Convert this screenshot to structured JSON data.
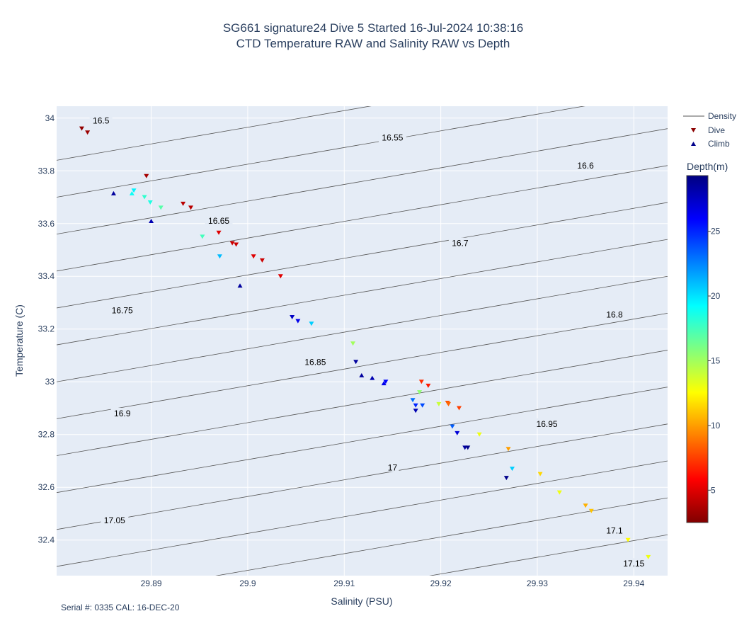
{
  "header": {
    "title_line1": "SG661 signature24 Dive 5 Started 16-Jul-2024 10:38:16",
    "title_line2": "CTD Temperature RAW and Salinity RAW vs Depth"
  },
  "footnote": "Serial #: 0335  CAL: 16-DEC-20",
  "chart_data": {
    "type": "scatter",
    "title": "SG661 signature24 Dive 5 Started 16-Jul-2024 10:38:16 CTD Temperature RAW and Salinity RAW vs Depth",
    "xlabel": "Salinity (PSU)",
    "ylabel": "Temperature (C)",
    "xlim": [
      29.8802,
      29.9435
    ],
    "ylim": [
      32.265,
      34.045
    ],
    "xticks": [
      "29.89",
      "29.9",
      "29.91",
      "29.92",
      "29.93",
      "29.94"
    ],
    "xtick_values": [
      29.89,
      29.9,
      29.91,
      29.92,
      29.93,
      29.94
    ],
    "yticks": [
      "32.4",
      "32.6",
      "32.8",
      "33",
      "33.2",
      "33.4",
      "33.6",
      "33.8",
      "34"
    ],
    "ytick_values": [
      32.4,
      32.6,
      32.8,
      33.0,
      33.2,
      33.4,
      33.6,
      33.8,
      34.0
    ],
    "grid": true,
    "legend": {
      "placement": "right",
      "entries": [
        {
          "name": "Density",
          "symbol": "line",
          "color": "#555555"
        },
        {
          "name": "Dive",
          "symbol": "triangle-down",
          "color": "#8b0000"
        },
        {
          "name": "Climb",
          "symbol": "triangle-up",
          "color": "#00008b"
        }
      ]
    },
    "colorbar": {
      "title": "Depth(m)",
      "min": 2.5,
      "max": 29.3,
      "ticks": [
        5,
        10,
        15,
        20,
        25
      ],
      "tick_labels": [
        "5",
        "10",
        "15",
        "20",
        "25"
      ],
      "colorscale": "jet-reversed"
    },
    "density_contours": [
      {
        "label": "16.5",
        "y_at_xmin": 33.84,
        "y_at_xmax": 34.24,
        "label_at": [
          29.8848,
          33.99
        ]
      },
      {
        "label": "16.55",
        "y_at_xmin": 33.7,
        "y_at_xmax": 34.1,
        "label_at": [
          29.915,
          33.925
        ]
      },
      {
        "label": "16.6",
        "y_at_xmin": 33.56,
        "y_at_xmax": 33.96,
        "label_at": [
          29.935,
          33.82
        ]
      },
      {
        "label": "16.65",
        "y_at_xmin": 33.42,
        "y_at_xmax": 33.82,
        "label_at": [
          29.897,
          33.61
        ]
      },
      {
        "label": "16.7",
        "y_at_xmin": 33.28,
        "y_at_xmax": 33.68,
        "label_at": [
          29.922,
          33.525
        ]
      },
      {
        "label": "16.75",
        "y_at_xmin": 33.14,
        "y_at_xmax": 33.54,
        "label_at": [
          29.887,
          33.27
        ]
      },
      {
        "label": "16.8",
        "y_at_xmin": 33.0,
        "y_at_xmax": 33.4,
        "label_at": [
          29.938,
          33.255
        ]
      },
      {
        "label": "16.85",
        "y_at_xmin": 32.86,
        "y_at_xmax": 33.26,
        "label_at": [
          29.907,
          33.075
        ]
      },
      {
        "label": "16.9",
        "y_at_xmin": 32.72,
        "y_at_xmax": 33.12,
        "label_at": [
          29.887,
          32.88
        ]
      },
      {
        "label": "16.95",
        "y_at_xmin": 32.58,
        "y_at_xmax": 32.98,
        "label_at": [
          29.931,
          32.84
        ]
      },
      {
        "label": "17",
        "y_at_xmin": 32.44,
        "y_at_xmax": 32.84,
        "label_at": [
          29.915,
          32.675
        ]
      },
      {
        "label": "17.05",
        "y_at_xmin": 32.3,
        "y_at_xmax": 32.7,
        "label_at": [
          29.8862,
          32.475
        ]
      },
      {
        "label": "17.1",
        "y_at_xmin": 32.16,
        "y_at_xmax": 32.56,
        "label_at": [
          29.938,
          32.435
        ]
      },
      {
        "label": "17.15",
        "y_at_xmin": 32.02,
        "y_at_xmax": 32.42,
        "label_at": [
          29.94,
          32.31
        ]
      }
    ],
    "series": [
      {
        "name": "Dive",
        "marker": "triangle-down",
        "points": [
          {
            "x": 29.8828,
            "y": 33.96,
            "depth": 3.0
          },
          {
            "x": 29.8834,
            "y": 33.945,
            "depth": 3.2
          },
          {
            "x": 29.8895,
            "y": 33.78,
            "depth": 3.5
          },
          {
            "x": 29.8933,
            "y": 33.675,
            "depth": 4.0
          },
          {
            "x": 29.8941,
            "y": 33.66,
            "depth": 4.0
          },
          {
            "x": 29.897,
            "y": 33.565,
            "depth": 5.0
          },
          {
            "x": 29.8984,
            "y": 33.525,
            "depth": 4.5
          },
          {
            "x": 29.8988,
            "y": 33.52,
            "depth": 4.5
          },
          {
            "x": 29.9006,
            "y": 33.475,
            "depth": 5.0
          },
          {
            "x": 29.9015,
            "y": 33.46,
            "depth": 4.5
          },
          {
            "x": 29.9034,
            "y": 33.4,
            "depth": 5.0
          },
          {
            "x": 29.918,
            "y": 33.0,
            "depth": 7.0
          },
          {
            "x": 29.9187,
            "y": 32.985,
            "depth": 6.5
          },
          {
            "x": 29.9207,
            "y": 32.92,
            "depth": 8.0
          },
          {
            "x": 29.9208,
            "y": 32.915,
            "depth": 8.5
          },
          {
            "x": 29.9219,
            "y": 32.9,
            "depth": 7.5
          },
          {
            "x": 29.924,
            "y": 32.8,
            "depth": 13.0
          },
          {
            "x": 29.927,
            "y": 32.745,
            "depth": 10.0
          },
          {
            "x": 29.9303,
            "y": 32.65,
            "depth": 11.5
          },
          {
            "x": 29.9323,
            "y": 32.58,
            "depth": 13.0
          },
          {
            "x": 29.935,
            "y": 32.53,
            "depth": 10.5
          },
          {
            "x": 29.9356,
            "y": 32.51,
            "depth": 11.0
          },
          {
            "x": 29.9394,
            "y": 32.4,
            "depth": 12.5
          },
          {
            "x": 29.9415,
            "y": 32.335,
            "depth": 13.0
          },
          {
            "x": 29.9109,
            "y": 33.145,
            "depth": 15.0
          },
          {
            "x": 29.9178,
            "y": 32.96,
            "depth": 15.5
          },
          {
            "x": 29.9198,
            "y": 32.915,
            "depth": 14.0
          },
          {
            "x": 29.8893,
            "y": 33.7,
            "depth": 18.0
          },
          {
            "x": 29.8899,
            "y": 33.68,
            "depth": 18.5
          },
          {
            "x": 29.891,
            "y": 33.66,
            "depth": 17.0
          },
          {
            "x": 29.8953,
            "y": 33.55,
            "depth": 17.5
          },
          {
            "x": 29.8971,
            "y": 33.475,
            "depth": 21.0
          },
          {
            "x": 29.8882,
            "y": 33.725,
            "depth": 19.5
          },
          {
            "x": 29.9066,
            "y": 33.22,
            "depth": 20.5
          },
          {
            "x": 29.9274,
            "y": 32.67,
            "depth": 20.5
          },
          {
            "x": 29.9171,
            "y": 32.93,
            "depth": 23.0
          },
          {
            "x": 29.9212,
            "y": 32.83,
            "depth": 23.5
          },
          {
            "x": 29.9174,
            "y": 32.91,
            "depth": 25.0
          },
          {
            "x": 29.9181,
            "y": 32.91,
            "depth": 24.0
          },
          {
            "x": 29.9052,
            "y": 33.23,
            "depth": 26.5
          },
          {
            "x": 29.9046,
            "y": 33.245,
            "depth": 27.5
          },
          {
            "x": 29.9217,
            "y": 32.805,
            "depth": 27.0
          },
          {
            "x": 29.9143,
            "y": 33.0,
            "depth": 26.0
          },
          {
            "x": 29.9112,
            "y": 33.075,
            "depth": 28.5
          },
          {
            "x": 29.9174,
            "y": 32.89,
            "depth": 28.0
          },
          {
            "x": 29.9225,
            "y": 32.75,
            "depth": 28.5
          },
          {
            "x": 29.9228,
            "y": 32.75,
            "depth": 29.0
          },
          {
            "x": 29.9268,
            "y": 32.635,
            "depth": 29.0
          }
        ]
      },
      {
        "name": "Climb",
        "marker": "triangle-up",
        "points": [
          {
            "x": 29.8861,
            "y": 33.715,
            "depth": 28.5
          },
          {
            "x": 29.89,
            "y": 33.61,
            "depth": 28.0
          },
          {
            "x": 29.8992,
            "y": 33.365,
            "depth": 28.5
          },
          {
            "x": 29.888,
            "y": 33.715,
            "depth": 19.0
          },
          {
            "x": 29.9118,
            "y": 33.025,
            "depth": 28.5
          },
          {
            "x": 29.9129,
            "y": 33.015,
            "depth": 28.0
          },
          {
            "x": 29.9141,
            "y": 32.995,
            "depth": 26.5
          }
        ]
      }
    ]
  }
}
